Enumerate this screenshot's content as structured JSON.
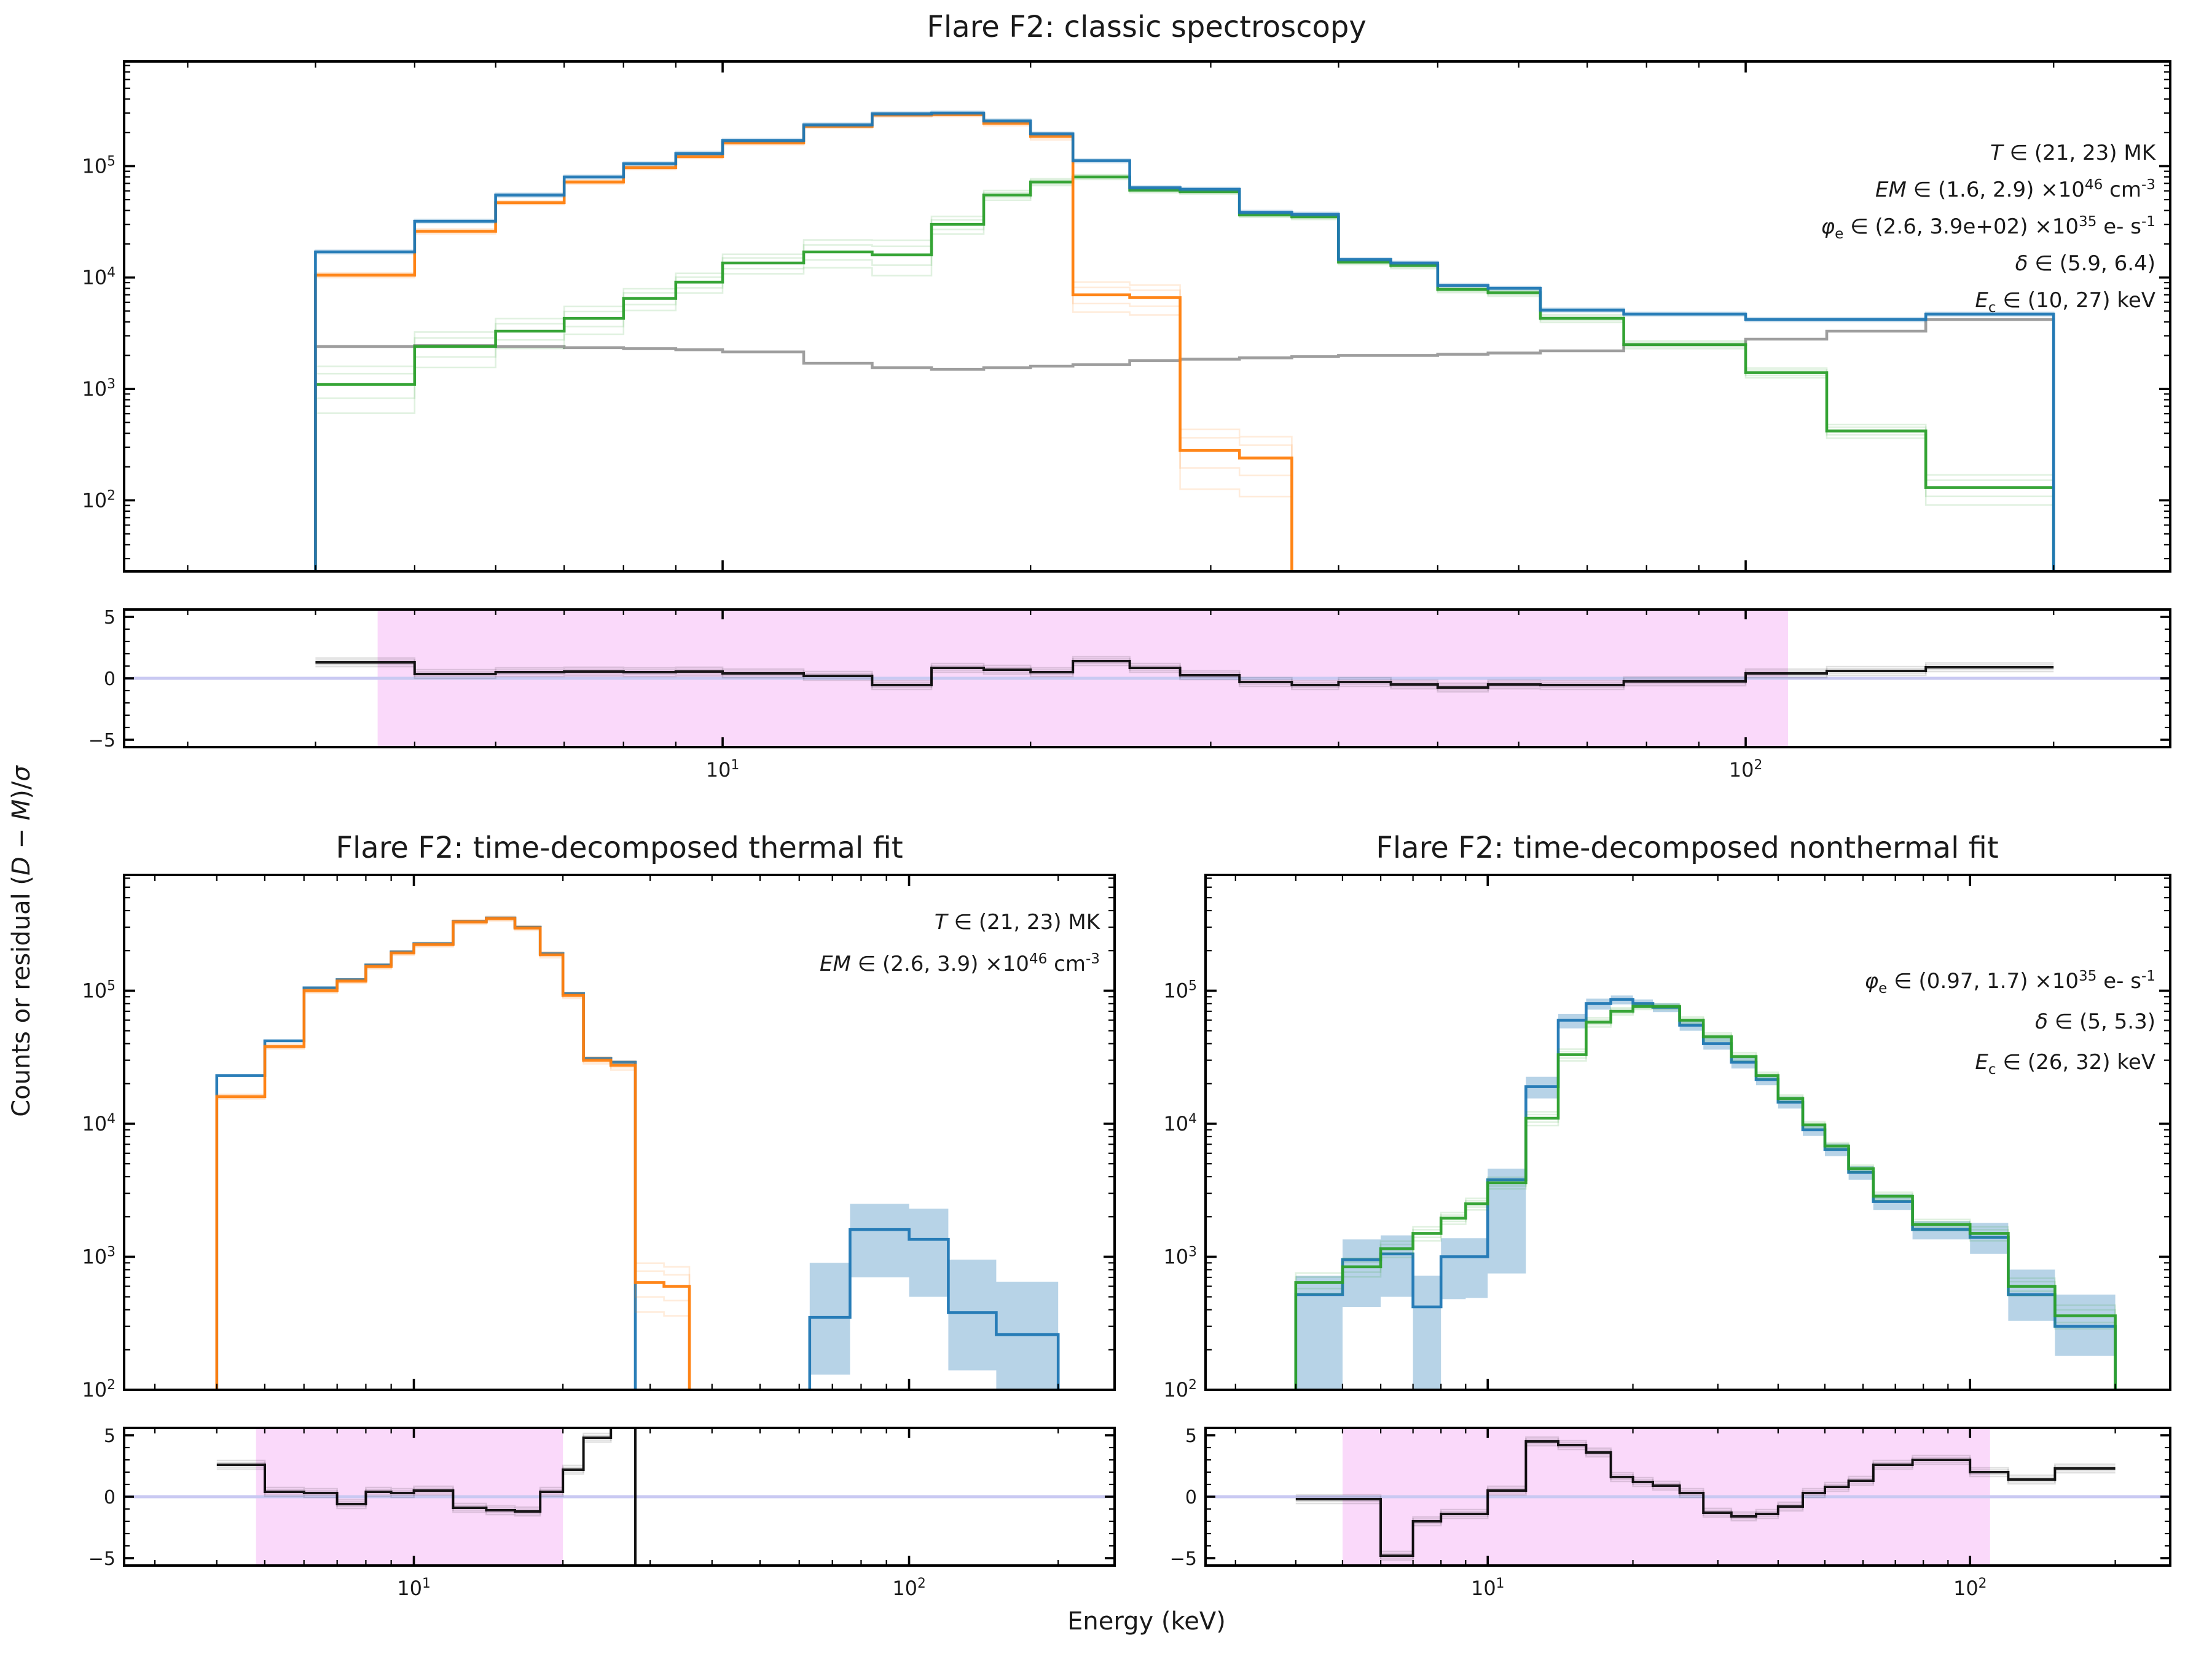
{
  "figure": {
    "xlabel": "Energy (keV)",
    "ylabel": "Counts or residual (*D* − *M*)/*σ*",
    "colors": {
      "data": "#1f77b4",
      "thermal": "#ff7f0e",
      "nonthermal": "#2ca02c",
      "background": "#999999",
      "residual_line": "#000000",
      "zero_line": "#c9c9f2",
      "highlight": "#fad9fa"
    }
  },
  "chart_data": [
    {
      "id": "classic",
      "type": "line",
      "subtype": "step-histogram-log-log",
      "title": "Flare F2: classic spectroscopy",
      "xlim_kev": [
        2.6,
        260
      ],
      "ylim_counts": [
        23,
        870000
      ],
      "x_major_ticks_kev": [
        10,
        100
      ],
      "y_major_ticks": [
        100,
        1000,
        10000,
        100000
      ],
      "x_edges_kev": [
        4,
        5,
        6,
        7,
        8,
        9,
        10,
        12,
        14,
        16,
        18,
        20,
        22,
        25,
        28,
        32,
        36,
        40,
        45,
        50,
        56,
        63,
        76,
        100,
        120,
        150,
        200
      ],
      "series": [
        {
          "name": "background",
          "color": "#999999",
          "values": [
            2400,
            2450,
            2400,
            2350,
            2300,
            2250,
            2150,
            1700,
            1550,
            1500,
            1550,
            1600,
            1650,
            1800,
            1850,
            1900,
            1950,
            2000,
            2000,
            2050,
            2100,
            2200,
            2500,
            2800,
            3300,
            4200
          ]
        },
        {
          "name": "nonthermal-component",
          "color": "#2ca02c",
          "spread": [
            0.45,
            0.35,
            0.3,
            0.28,
            0.22,
            0.2,
            0.2,
            0.28,
            0.35,
            0.18,
            0.1,
            0.07,
            0.05,
            0.05,
            0.05,
            0.05,
            0.05,
            0.05,
            0.06,
            0.06,
            0.07,
            0.08,
            0.08,
            0.1,
            0.14,
            0.3
          ],
          "values": [
            1100,
            2400,
            3300,
            4300,
            6500,
            9100,
            13500,
            17000,
            16000,
            30000,
            55000,
            72000,
            80000,
            61000,
            59000,
            36500,
            35000,
            13800,
            12800,
            7800,
            7300,
            4300,
            2500,
            1400,
            420,
            130
          ]
        },
        {
          "name": "thermal-component",
          "color": "#ff7f0e",
          "spread": [
            0.05,
            0.05,
            0.04,
            0.04,
            0.04,
            0.04,
            0.04,
            0.04,
            0.04,
            0.04,
            0.05,
            0.07,
            0.3,
            0.3,
            0.55,
            0.55,
            0,
            0,
            0,
            0,
            0,
            0,
            0,
            0,
            0,
            0
          ],
          "values": [
            10500,
            26000,
            47000,
            72000,
            97000,
            122000,
            162000,
            228000,
            288000,
            290000,
            243000,
            185000,
            7000,
            6600,
            280,
            240,
            null,
            null,
            null,
            null,
            null,
            null,
            null,
            null,
            null,
            null
          ]
        },
        {
          "name": "counts-data",
          "color": "#1f77b4",
          "spread": 0.04,
          "values": [
            17000,
            32000,
            55000,
            80000,
            105000,
            130000,
            170000,
            235000,
            295000,
            300000,
            255000,
            195000,
            112000,
            64000,
            62000,
            38500,
            37000,
            14500,
            13500,
            8500,
            8000,
            5100,
            4700,
            4200,
            4200,
            4700
          ]
        }
      ],
      "annotations": [
        "*T* ∈ (21, 23) MK",
        "*EM* ∈ (1.6, 2.9) ×10^{46} cm^{-3}",
        "*φ*_{e} ∈ (2.6, 3.9e+02) ×10^{35} e- s^{-1}",
        "*δ* ∈ (5.9, 6.4)",
        "*E*_{c} ∈ (10, 27) keV"
      ],
      "residual": {
        "ylim": [
          -5,
          5
        ],
        "y_major_ticks": [
          -5,
          0,
          5
        ],
        "highlight_span_kev": [
          4.6,
          110
        ],
        "values": [
          1.3,
          0.35,
          0.5,
          0.55,
          0.5,
          0.55,
          0.4,
          0.2,
          -0.55,
          0.85,
          0.7,
          0.5,
          1.4,
          0.85,
          0.25,
          -0.3,
          -0.55,
          -0.3,
          -0.5,
          -0.75,
          -0.5,
          -0.55,
          -0.25,
          0.4,
          0.6,
          0.9
        ]
      }
    },
    {
      "id": "thermal",
      "type": "line",
      "subtype": "step-histogram-log-log",
      "title": "Flare F2: time-decomposed thermal fit",
      "xlim_kev": [
        2.6,
        260
      ],
      "ylim_counts": [
        100,
        740000
      ],
      "x_major_ticks_kev": [
        10,
        100
      ],
      "y_major_ticks": [
        100,
        1000,
        10000,
        100000
      ],
      "x_edges_kev": [
        4,
        5,
        6,
        7,
        8,
        9,
        10,
        12,
        14,
        16,
        18,
        20,
        22,
        25,
        28,
        32,
        36,
        40,
        45,
        50,
        56,
        63,
        76,
        100,
        120,
        150,
        200
      ],
      "series": [
        {
          "name": "counts-data",
          "color": "#1f77b4",
          "band_lo": [
            null,
            null,
            null,
            null,
            null,
            null,
            null,
            null,
            null,
            null,
            null,
            null,
            null,
            null,
            null,
            null,
            null,
            null,
            null,
            null,
            null,
            130,
            700,
            500,
            140,
            90
          ],
          "band_hi": [
            null,
            null,
            null,
            null,
            null,
            null,
            null,
            null,
            null,
            null,
            null,
            null,
            null,
            null,
            null,
            null,
            null,
            null,
            null,
            null,
            null,
            900,
            2500,
            2300,
            950,
            650
          ],
          "values": [
            23000,
            42000,
            105000,
            121000,
            156000,
            196000,
            226000,
            332000,
            352000,
            300000,
            190000,
            95000,
            31000,
            29000,
            null,
            null,
            null,
            null,
            null,
            null,
            null,
            350,
            1600,
            1350,
            380,
            260
          ]
        },
        {
          "name": "thermal-model",
          "color": "#ff7f0e",
          "spread": [
            0.04,
            0.04,
            0.04,
            0.04,
            0.04,
            0.04,
            0.04,
            0.04,
            0.04,
            0.04,
            0.05,
            0.05,
            0.06,
            0.08,
            0.4,
            0.4,
            0,
            0,
            0,
            0,
            0,
            0,
            0,
            0,
            0,
            0
          ],
          "values": [
            16000,
            38000,
            100000,
            118000,
            152000,
            192000,
            222000,
            328000,
            348000,
            296000,
            186000,
            92000,
            30000,
            27500,
            640,
            600,
            null,
            null,
            null,
            null,
            null,
            null,
            null,
            null,
            null,
            null
          ]
        }
      ],
      "annotations": [
        "*T* ∈ (21, 23) MK",
        "*EM* ∈ (2.6, 3.9) ×10^{46} cm^{-3}"
      ],
      "residual": {
        "ylim": [
          -5,
          5
        ],
        "y_major_ticks": [
          -5,
          0,
          5
        ],
        "highlight_span_kev": [
          4.8,
          20
        ],
        "values": [
          2.6,
          0.4,
          0.3,
          -0.6,
          0.4,
          0.3,
          0.5,
          -0.9,
          -1.1,
          -1.2,
          0.4,
          2.2,
          4.8,
          7,
          -8,
          null,
          null,
          null,
          null,
          null,
          null,
          0.2,
          0.5,
          1.7,
          1.1,
          0.6
        ]
      }
    },
    {
      "id": "nonthermal",
      "type": "line",
      "subtype": "step-histogram-log-log",
      "title": "Flare F2: time-decomposed nonthermal fit",
      "xlim_kev": [
        2.6,
        260
      ],
      "ylim_counts": [
        100,
        740000
      ],
      "x_major_ticks_kev": [
        10,
        100
      ],
      "y_major_ticks": [
        100,
        1000,
        10000,
        100000
      ],
      "x_edges_kev": [
        4,
        5,
        6,
        7,
        8,
        9,
        10,
        12,
        14,
        16,
        18,
        20,
        22,
        25,
        28,
        32,
        36,
        40,
        45,
        50,
        56,
        63,
        76,
        100,
        120,
        150,
        200
      ],
      "series": [
        {
          "name": "counts-data",
          "color": "#1f77b4",
          "band_lo": [
            95,
            420,
            500,
            95,
            480,
            490,
            750,
            15500,
            52000,
            72000,
            79000,
            74000,
            69000,
            50000,
            36000,
            26000,
            19500,
            13000,
            8100,
            5700,
            3800,
            2250,
            1350,
            1050,
            330,
            180
          ],
          "band_hi": [
            720,
            1350,
            1450,
            720,
            1380,
            1380,
            4600,
            22500,
            67000,
            87000,
            92000,
            86000,
            80500,
            60000,
            44000,
            32000,
            23500,
            16000,
            9900,
            7100,
            4800,
            2950,
            1850,
            1800,
            800,
            520
          ],
          "values": [
            520,
            950,
            1050,
            420,
            1000,
            1000,
            3800,
            19000,
            60000,
            80000,
            86000,
            80000,
            75000,
            55000,
            40000,
            29000,
            21500,
            14500,
            9000,
            6400,
            4300,
            2600,
            1600,
            1400,
            520,
            300
          ]
        },
        {
          "name": "nonthermal-model",
          "color": "#2ca02c",
          "spread": [
            0.18,
            0.16,
            0.14,
            0.12,
            0.1,
            0.1,
            0.1,
            0.12,
            0.1,
            0.08,
            0.06,
            0.05,
            0.05,
            0.06,
            0.07,
            0.07,
            0.06,
            0.06,
            0.06,
            0.06,
            0.06,
            0.07,
            0.09,
            0.12,
            0.15,
            0.2
          ],
          "values": [
            640,
            840,
            1150,
            1500,
            1950,
            2500,
            3600,
            11000,
            33000,
            58000,
            70000,
            76000,
            76000,
            60000,
            45000,
            32000,
            23000,
            15500,
            9800,
            6800,
            4600,
            2850,
            1750,
            1500,
            600,
            360
          ]
        }
      ],
      "annotations": [
        "*φ*_{e} ∈ (0.97, 1.7) ×10^{35} e- s^{-1}",
        "*δ* ∈ (5, 5.3)",
        "*E*_{c} ∈ (26, 32) keV"
      ],
      "residual": {
        "ylim": [
          -5,
          5
        ],
        "y_major_ticks": [
          -5,
          0,
          5
        ],
        "highlight_span_kev": [
          5,
          110
        ],
        "values": [
          -0.2,
          -0.2,
          -4.8,
          -2.0,
          -1.4,
          -1.4,
          0.5,
          4.5,
          4.2,
          3.6,
          1.6,
          1.2,
          0.9,
          0.3,
          -1.3,
          -1.6,
          -1.4,
          -0.8,
          0.3,
          0.8,
          1.3,
          2.6,
          3.0,
          2.0,
          1.4,
          2.3
        ]
      }
    }
  ]
}
